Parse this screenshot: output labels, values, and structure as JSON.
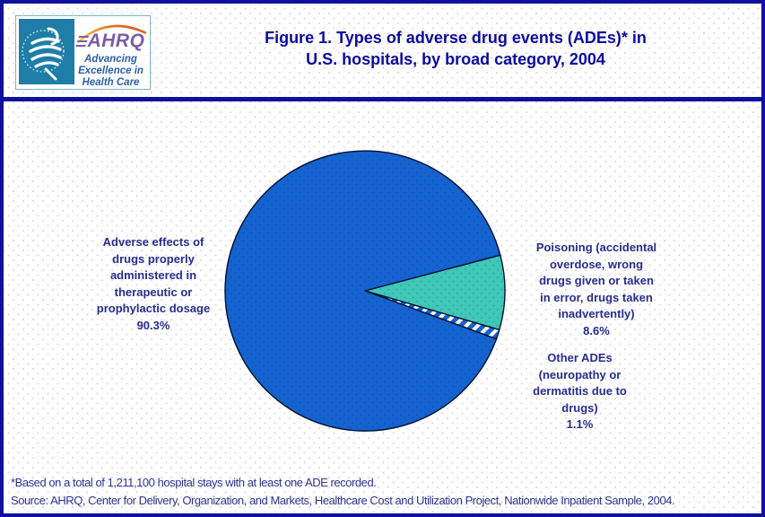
{
  "page": {
    "border_color": "#10109E",
    "background_dot_color": "#DCD8EE"
  },
  "header": {
    "title_line1": "Figure 1. Types of adverse drug events (ADEs)* in",
    "title_line2": "U.S. hospitals, by broad category, 2004",
    "title_color": "#0A0AA0",
    "logo": {
      "ahrq_wordmark": "AHRQ",
      "tagline_line1": "Advancing",
      "tagline_line2": "Excellence in",
      "tagline_line3": "Health Care",
      "seal_color": "#1F7EA8",
      "wordmark_color": "#7C5CA8",
      "tagline_color": "#2B5FAE",
      "swoosh_colors": [
        "#F7D04B",
        "#EC8F2F",
        "#D84A1B"
      ]
    }
  },
  "chart_data": {
    "type": "pie",
    "title": "Figure 1. Types of adverse drug events (ADEs)* in U.S. hospitals, by broad category, 2004",
    "legend_position": "labels-around-pie",
    "outline_color": "#001030",
    "start_angle_deg": -14.8,
    "slices": [
      {
        "label": "Adverse effects of drugs properly administered in therapeutic or prophylactic dosage",
        "value_pct": 90.3,
        "color": "#1463CF",
        "pattern": "solid"
      },
      {
        "label": "Poisoning (accidental overdose, wrong drugs given or taken in error, drugs taken inadvertently)",
        "value_pct": 8.6,
        "color": "#3FC8B8",
        "pattern": "solid"
      },
      {
        "label": "Other ADEs (neuropathy or dermatitis due to drugs)",
        "value_pct": 1.1,
        "color": "#FFFFFF",
        "pattern": "diagonal-stripes",
        "stripe_color": "#1463CF"
      }
    ]
  },
  "labels": {
    "text_color": "#272D8E",
    "adverse": {
      "lines": [
        "Adverse effects of",
        "drugs properly",
        "administered in",
        "therapeutic or",
        "prophylactic dosage"
      ],
      "pct": "90.3%"
    },
    "poisoning": {
      "lines": [
        "Poisoning (accidental",
        "overdose, wrong",
        "drugs given or taken",
        "in error, drugs taken",
        "inadvertently)"
      ],
      "pct": "8.6%"
    },
    "other": {
      "lines": [
        "Other ADEs",
        "(neuropathy or",
        "dermatitis due to",
        "drugs)"
      ],
      "pct": "1.1%"
    }
  },
  "footer": {
    "note": "*Based on a total of 1,211,100 hospital stays with at least one ADE recorded.",
    "source": "Source: AHRQ, Center for Delivery, Organization, and Markets, Healthcare Cost and Utilization Project, Nationwide Inpatient Sample, 2004.",
    "text_color": "#2F3490"
  }
}
